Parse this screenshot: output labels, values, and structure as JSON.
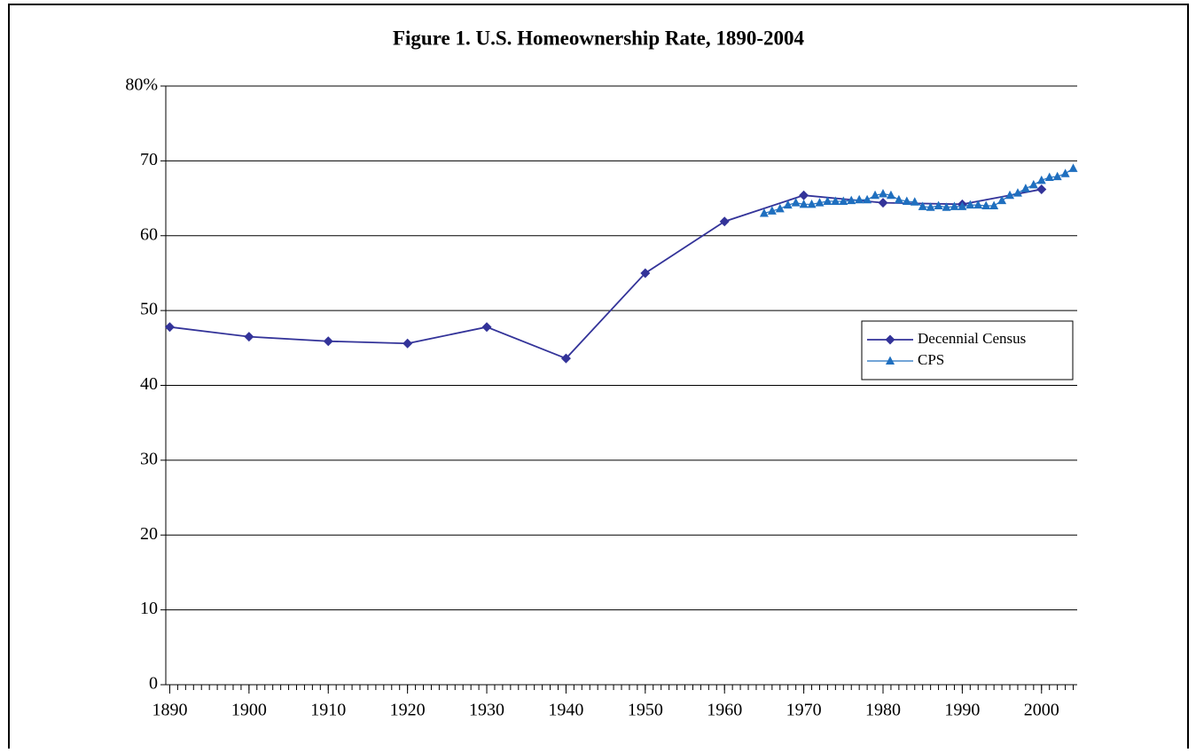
{
  "chart_data": {
    "type": "line",
    "title": "Figure 1. U.S. Homeownership Rate, 1890-2004",
    "xlim": [
      1889.5,
      2004.5
    ],
    "xticks": [
      1890,
      1900,
      1910,
      1920,
      1930,
      1940,
      1950,
      1960,
      1970,
      1980,
      1990,
      2000
    ],
    "ylim": [
      0,
      80
    ],
    "yticks": [
      0,
      10,
      20,
      30,
      40,
      50,
      60,
      70,
      {
        "value": 80,
        "label": "80%"
      }
    ],
    "grid": true,
    "legend": "right",
    "series": [
      {
        "name": "Decennial Census",
        "color": "#333399",
        "marker": "diamond",
        "x": [
          1890,
          1900,
          1910,
          1920,
          1930,
          1940,
          1950,
          1960,
          1970,
          1980,
          1990,
          2000
        ],
        "values": [
          47.8,
          46.5,
          45.9,
          45.6,
          47.8,
          43.6,
          55.0,
          61.9,
          65.4,
          64.4,
          64.2,
          66.2
        ]
      },
      {
        "name": "CPS",
        "color": "#1f6fbf",
        "marker": "triangle",
        "x": [
          1965,
          1966,
          1967,
          1968,
          1969,
          1970,
          1971,
          1972,
          1973,
          1974,
          1975,
          1976,
          1977,
          1978,
          1979,
          1980,
          1981,
          1982,
          1983,
          1984,
          1985,
          1986,
          1987,
          1988,
          1989,
          1990,
          1991,
          1992,
          1993,
          1994,
          1995,
          1996,
          1997,
          1998,
          1999,
          2000,
          2001,
          2002,
          2003,
          2004
        ],
        "values": [
          63.0,
          63.3,
          63.6,
          64.1,
          64.4,
          64.2,
          64.2,
          64.4,
          64.6,
          64.6,
          64.6,
          64.7,
          64.8,
          64.8,
          65.4,
          65.6,
          65.4,
          64.8,
          64.6,
          64.5,
          63.9,
          63.8,
          64.0,
          63.8,
          63.9,
          63.9,
          64.1,
          64.1,
          64.0,
          64.0,
          64.7,
          65.4,
          65.7,
          66.3,
          66.8,
          67.4,
          67.8,
          67.9,
          68.3,
          69.0
        ]
      }
    ]
  }
}
